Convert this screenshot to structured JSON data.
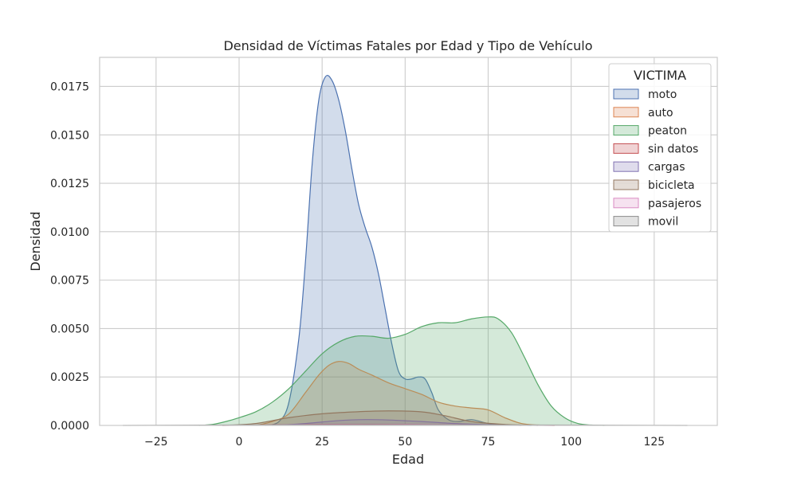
{
  "chart_data": {
    "type": "area",
    "title": "Densidad de Víctimas Fatales por Edad y Tipo de Vehículo",
    "xlabel": "Edad",
    "ylabel": "Densidad",
    "xlim": [
      -42,
      144
    ],
    "ylim": [
      0,
      0.019
    ],
    "xticks": [
      -25,
      0,
      25,
      50,
      75,
      100,
      125
    ],
    "xtick_labels": [
      "−25",
      "0",
      "25",
      "50",
      "75",
      "100",
      "125"
    ],
    "yticks": [
      0,
      0.0025,
      0.005,
      0.0075,
      0.01,
      0.0125,
      0.015,
      0.0175
    ],
    "ytick_labels": [
      "0.0000",
      "0.0025",
      "0.0050",
      "0.0075",
      "0.0100",
      "0.0125",
      "0.0150",
      "0.0175"
    ],
    "grid": true,
    "legend": {
      "title": "VICTIMA",
      "placement": "top-right"
    },
    "series": [
      {
        "name": "moto",
        "color": "#4c72b0",
        "points": [
          [
            8,
            0
          ],
          [
            12,
            0.0002
          ],
          [
            15,
            0.0012
          ],
          [
            18,
            0.0045
          ],
          [
            20,
            0.0085
          ],
          [
            22,
            0.0135
          ],
          [
            24,
            0.0168
          ],
          [
            26,
            0.018
          ],
          [
            28,
            0.0178
          ],
          [
            30,
            0.0168
          ],
          [
            32,
            0.0152
          ],
          [
            34,
            0.0132
          ],
          [
            36,
            0.0114
          ],
          [
            38,
            0.0102
          ],
          [
            40,
            0.0092
          ],
          [
            42,
            0.0078
          ],
          [
            44,
            0.006
          ],
          [
            46,
            0.0042
          ],
          [
            48,
            0.0028
          ],
          [
            50,
            0.0024
          ],
          [
            52,
            0.0024
          ],
          [
            54,
            0.0025
          ],
          [
            56,
            0.0024
          ],
          [
            58,
            0.0017
          ],
          [
            60,
            0.0008
          ],
          [
            63,
            0.0003
          ],
          [
            66,
            0.0002
          ],
          [
            70,
            0.0003
          ],
          [
            75,
            0.0001
          ],
          [
            80,
            2e-05
          ],
          [
            88,
            0
          ]
        ]
      },
      {
        "name": "auto",
        "color": "#dd8452",
        "points": [
          [
            5,
            0
          ],
          [
            10,
            0.0002
          ],
          [
            15,
            0.0006
          ],
          [
            20,
            0.0017
          ],
          [
            24,
            0.0026
          ],
          [
            27,
            0.0031
          ],
          [
            30,
            0.0033
          ],
          [
            33,
            0.0032
          ],
          [
            36,
            0.0029
          ],
          [
            40,
            0.0026
          ],
          [
            45,
            0.0022
          ],
          [
            50,
            0.0019
          ],
          [
            55,
            0.0016
          ],
          [
            60,
            0.0012
          ],
          [
            65,
            0.001
          ],
          [
            70,
            0.0009
          ],
          [
            75,
            0.0008
          ],
          [
            80,
            0.0004
          ],
          [
            85,
            0.0001
          ],
          [
            90,
            2e-05
          ],
          [
            95,
            0
          ]
        ]
      },
      {
        "name": "peaton",
        "color": "#55a868",
        "points": [
          [
            -12,
            0
          ],
          [
            -8,
            5e-05
          ],
          [
            -4,
            0.0002
          ],
          [
            0,
            0.0004
          ],
          [
            5,
            0.0007
          ],
          [
            10,
            0.0012
          ],
          [
            15,
            0.0019
          ],
          [
            20,
            0.0028
          ],
          [
            25,
            0.0037
          ],
          [
            30,
            0.0043
          ],
          [
            35,
            0.0046
          ],
          [
            40,
            0.0046
          ],
          [
            45,
            0.0045
          ],
          [
            50,
            0.0047
          ],
          [
            55,
            0.0051
          ],
          [
            60,
            0.0053
          ],
          [
            65,
            0.0053
          ],
          [
            70,
            0.0055
          ],
          [
            75,
            0.0056
          ],
          [
            78,
            0.0055
          ],
          [
            82,
            0.0048
          ],
          [
            86,
            0.0035
          ],
          [
            90,
            0.0021
          ],
          [
            94,
            0.001
          ],
          [
            98,
            0.0004
          ],
          [
            102,
            0.0001
          ],
          [
            106,
            2e-05
          ],
          [
            110,
            0
          ]
        ]
      },
      {
        "name": "sin datos",
        "color": "#c44e52",
        "points": [
          [
            -5,
            0
          ],
          [
            10,
            3e-05
          ],
          [
            30,
            6e-05
          ],
          [
            50,
            5e-05
          ],
          [
            70,
            3e-05
          ],
          [
            95,
            0
          ]
        ]
      },
      {
        "name": "cargas",
        "color": "#8172b2",
        "points": [
          [
            10,
            0
          ],
          [
            20,
            0.0001
          ],
          [
            30,
            0.00025
          ],
          [
            38,
            0.0003
          ],
          [
            45,
            0.00028
          ],
          [
            55,
            0.0002
          ],
          [
            65,
            0.0001
          ],
          [
            75,
            4e-05
          ],
          [
            85,
            0
          ]
        ]
      },
      {
        "name": "bicicleta",
        "color": "#937860",
        "points": [
          [
            -5,
            0
          ],
          [
            5,
            0.0001
          ],
          [
            15,
            0.0004
          ],
          [
            25,
            0.0006
          ],
          [
            35,
            0.0007
          ],
          [
            45,
            0.00075
          ],
          [
            55,
            0.0007
          ],
          [
            62,
            0.0005
          ],
          [
            70,
            0.0002
          ],
          [
            80,
            5e-05
          ],
          [
            90,
            0
          ]
        ]
      },
      {
        "name": "pasajeros",
        "color": "#da8bc3",
        "points": [
          [
            -5,
            0
          ],
          [
            10,
            2e-05
          ],
          [
            30,
            4e-05
          ],
          [
            50,
            4e-05
          ],
          [
            70,
            2e-05
          ],
          [
            95,
            0
          ]
        ]
      },
      {
        "name": "movil",
        "color": "#8c8c8c",
        "points": [
          [
            -35,
            0
          ],
          [
            0,
            2e-05
          ],
          [
            40,
            3e-05
          ],
          [
            90,
            2e-05
          ],
          [
            135,
            0
          ]
        ]
      }
    ]
  }
}
